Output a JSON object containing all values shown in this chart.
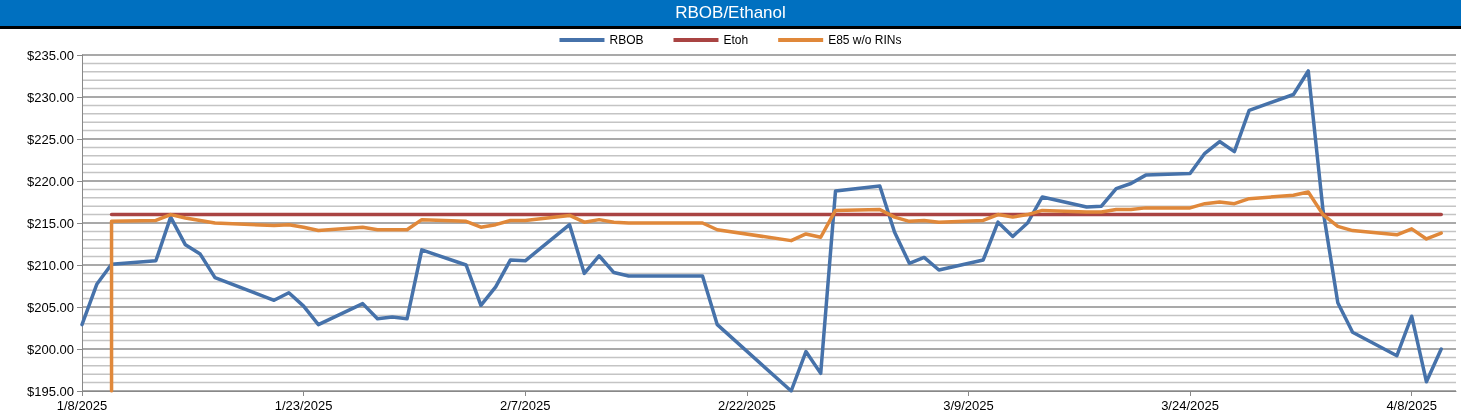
{
  "chart_data": {
    "type": "line",
    "title": "RBOB/Ethanol",
    "x": [
      "2025-01-08",
      "2025-01-09",
      "2025-01-10",
      "2025-01-13",
      "2025-01-14",
      "2025-01-15",
      "2025-01-16",
      "2025-01-17",
      "2025-01-21",
      "2025-01-22",
      "2025-01-23",
      "2025-01-24",
      "2025-01-27",
      "2025-01-28",
      "2025-01-29",
      "2025-01-30",
      "2025-01-31",
      "2025-02-03",
      "2025-02-04",
      "2025-02-05",
      "2025-02-06",
      "2025-02-07",
      "2025-02-10",
      "2025-02-11",
      "2025-02-12",
      "2025-02-13",
      "2025-02-14",
      "2025-02-19",
      "2025-02-20",
      "2025-02-25",
      "2025-02-26",
      "2025-02-27",
      "2025-02-28",
      "2025-03-03",
      "2025-03-04",
      "2025-03-05",
      "2025-03-06",
      "2025-03-07",
      "2025-03-10",
      "2025-03-11",
      "2025-03-12",
      "2025-03-13",
      "2025-03-14",
      "2025-03-17",
      "2025-03-18",
      "2025-03-19",
      "2025-03-20",
      "2025-03-21",
      "2025-03-24",
      "2025-03-25",
      "2025-03-26",
      "2025-03-27",
      "2025-03-28",
      "2025-03-31",
      "2025-04-01",
      "2025-04-02",
      "2025-04-03",
      "2025-04-04",
      "2025-04-07",
      "2025-04-08",
      "2025-04-09",
      "2025-04-10"
    ],
    "series": [
      {
        "name": "RBOB",
        "color": "#4672aa",
        "values": [
          202.9,
          207.7,
          210.1,
          210.5,
          215.7,
          212.4,
          211.3,
          208.5,
          205.8,
          206.7,
          205.1,
          202.9,
          205.4,
          203.6,
          203.8,
          203.6,
          211.8,
          210.0,
          205.2,
          207.4,
          210.6,
          210.5,
          214.8,
          209.0,
          211.1,
          209.1,
          208.7,
          208.7,
          202.9,
          195.0,
          199.7,
          197.1,
          218.8,
          219.4,
          213.9,
          210.2,
          210.9,
          209.4,
          210.6,
          215.1,
          213.4,
          215.0,
          218.1,
          216.9,
          217.0,
          219.1,
          219.7,
          220.7,
          220.9,
          223.3,
          224.7,
          223.5,
          228.4,
          230.3,
          233.1,
          216.5,
          205.5,
          202.0,
          199.2,
          203.9,
          196.1,
          200.0
        ]
      },
      {
        "name": "Etoh",
        "color": "#a94443",
        "values": [
          null,
          null,
          216.0,
          216.0,
          216.0,
          216.0,
          216.0,
          216.0,
          216.0,
          216.0,
          216.0,
          216.0,
          216.0,
          216.0,
          216.0,
          216.0,
          216.0,
          216.0,
          216.0,
          216.0,
          216.0,
          216.0,
          216.0,
          216.0,
          216.0,
          216.0,
          216.0,
          216.0,
          216.0,
          216.0,
          216.0,
          216.0,
          216.0,
          216.0,
          216.0,
          216.0,
          216.0,
          216.0,
          216.0,
          216.0,
          216.0,
          216.0,
          216.0,
          216.0,
          216.0,
          216.0,
          216.0,
          216.0,
          216.0,
          216.0,
          216.0,
          216.0,
          216.0,
          216.0,
          216.0,
          216.0,
          216.0,
          216.0,
          216.0,
          216.0,
          216.0,
          216.0
        ]
      },
      {
        "name": "E85 w/o RINs",
        "color": "#e0883a",
        "x": [
          "2025-01-10",
          "2025-01-10",
          "2025-01-13",
          "2025-01-14",
          "2025-01-15",
          "2025-01-16",
          "2025-01-17",
          "2025-01-21",
          "2025-01-22",
          "2025-01-23",
          "2025-01-24",
          "2025-01-27",
          "2025-01-28",
          "2025-01-29",
          "2025-01-30",
          "2025-01-31",
          "2025-02-03",
          "2025-02-04",
          "2025-02-05",
          "2025-02-06",
          "2025-02-07",
          "2025-02-10",
          "2025-02-11",
          "2025-02-12",
          "2025-02-13",
          "2025-02-14",
          "2025-02-19",
          "2025-02-20",
          "2025-02-25",
          "2025-02-26",
          "2025-02-27",
          "2025-02-28",
          "2025-03-03",
          "2025-03-04",
          "2025-03-05",
          "2025-03-06",
          "2025-03-07",
          "2025-03-10",
          "2025-03-11",
          "2025-03-12",
          "2025-03-13",
          "2025-03-14",
          "2025-03-17",
          "2025-03-18",
          "2025-03-19",
          "2025-03-20",
          "2025-03-21",
          "2025-03-24",
          "2025-03-25",
          "2025-03-26",
          "2025-03-27",
          "2025-03-28",
          "2025-03-31",
          "2025-04-01",
          "2025-04-02",
          "2025-04-03",
          "2025-04-04",
          "2025-04-07",
          "2025-04-08",
          "2025-04-09",
          "2025-04-10"
        ],
        "values": [
          195.0,
          215.2,
          215.3,
          216.0,
          215.6,
          215.3,
          215.0,
          214.7,
          214.8,
          214.5,
          214.1,
          214.5,
          214.2,
          214.2,
          214.2,
          215.4,
          215.2,
          214.5,
          214.8,
          215.3,
          215.3,
          215.9,
          215.1,
          215.4,
          215.1,
          215.0,
          215.0,
          214.2,
          212.9,
          213.7,
          213.3,
          216.5,
          216.6,
          215.7,
          215.2,
          215.3,
          215.1,
          215.3,
          216.0,
          215.7,
          216.0,
          216.5,
          216.3,
          216.3,
          216.6,
          216.6,
          216.8,
          216.8,
          217.3,
          217.5,
          217.3,
          217.9,
          218.3,
          218.7,
          216.0,
          214.6,
          214.1,
          213.6,
          214.3,
          213.1,
          213.8
        ]
      }
    ],
    "xlim": [
      "2025-01-08",
      "2025-04-11"
    ],
    "xticks": [
      {
        "value": "2025-01-08",
        "label": "1/8/2025"
      },
      {
        "value": "2025-01-23",
        "label": "1/23/2025"
      },
      {
        "value": "2025-02-07",
        "label": "2/7/2025"
      },
      {
        "value": "2025-02-22",
        "label": "2/22/2025"
      },
      {
        "value": "2025-03-09",
        "label": "3/9/2025"
      },
      {
        "value": "2025-03-24",
        "label": "3/24/2025"
      },
      {
        "value": "2025-04-08",
        "label": "4/8/2025"
      }
    ],
    "ylim": [
      195,
      235
    ],
    "yticks": [
      {
        "value": 195,
        "label": "$195.00"
      },
      {
        "value": 196,
        "label": null
      },
      {
        "value": 197,
        "label": null
      },
      {
        "value": 198,
        "label": null
      },
      {
        "value": 199,
        "label": null
      },
      {
        "value": 200,
        "label": "$200.00"
      },
      {
        "value": 201,
        "label": null
      },
      {
        "value": 202,
        "label": null
      },
      {
        "value": 203,
        "label": null
      },
      {
        "value": 204,
        "label": null
      },
      {
        "value": 205,
        "label": "$205.00"
      },
      {
        "value": 206,
        "label": null
      },
      {
        "value": 207,
        "label": null
      },
      {
        "value": 208,
        "label": null
      },
      {
        "value": 209,
        "label": null
      },
      {
        "value": 210,
        "label": "$210.00"
      },
      {
        "value": 211,
        "label": null
      },
      {
        "value": 212,
        "label": null
      },
      {
        "value": 213,
        "label": null
      },
      {
        "value": 214,
        "label": null
      },
      {
        "value": 215,
        "label": "$215.00"
      },
      {
        "value": 216,
        "label": null
      },
      {
        "value": 217,
        "label": null
      },
      {
        "value": 218,
        "label": null
      },
      {
        "value": 219,
        "label": null
      },
      {
        "value": 220,
        "label": "$220.00"
      },
      {
        "value": 221,
        "label": null
      },
      {
        "value": 222,
        "label": null
      },
      {
        "value": 223,
        "label": null
      },
      {
        "value": 224,
        "label": null
      },
      {
        "value": 225,
        "label": "$225.00"
      },
      {
        "value": 226,
        "label": null
      },
      {
        "value": 227,
        "label": null
      },
      {
        "value": 228,
        "label": null
      },
      {
        "value": 229,
        "label": null
      },
      {
        "value": 230,
        "label": "$230.00"
      },
      {
        "value": 231,
        "label": null
      },
      {
        "value": 232,
        "label": null
      },
      {
        "value": 233,
        "label": null
      },
      {
        "value": 234,
        "label": null
      },
      {
        "value": 235,
        "label": "$235.00"
      }
    ],
    "grid": "y",
    "legend": "top",
    "marker": "none",
    "line_style": "solid"
  }
}
